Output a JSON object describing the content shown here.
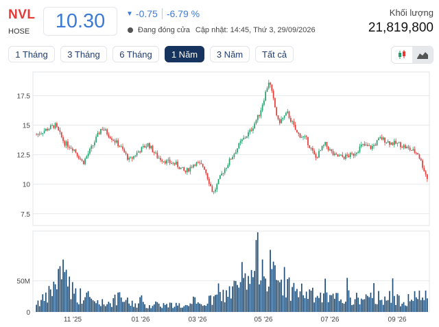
{
  "header": {
    "ticker": "NVL",
    "exchange": "HOSE",
    "price": "10.30",
    "change": "-0.75",
    "change_pct": "-6.79 %",
    "status": "Đang đóng cửa",
    "updated": "Cập nhật: 14:45, Thứ 3, 29/09/2026",
    "volume_label": "Khối lượng",
    "volume_value": "21,819,800"
  },
  "colors": {
    "up": "#22a06b",
    "down": "#e53935",
    "volume": "#1f4e79",
    "accent": "#3b7bd6",
    "active_tab": "#17345e"
  },
  "tabs": [
    {
      "label": "1 Tháng",
      "active": false
    },
    {
      "label": "3 Tháng",
      "active": false
    },
    {
      "label": "6 Tháng",
      "active": false
    },
    {
      "label": "1 Năm",
      "active": true
    },
    {
      "label": "3 Năm",
      "active": false
    },
    {
      "label": "Tất cả",
      "active": false
    }
  ],
  "chart_toggle": {
    "icons": [
      "candlestick-icon",
      "area-chart-icon"
    ],
    "selected": "area-chart-icon"
  },
  "chart_data": {
    "type": "candlestick",
    "price_ticks": [
      "17.5",
      "15",
      "12.5",
      "10",
      "7.5"
    ],
    "volume_ticks": [
      "50M",
      "0"
    ],
    "x_ticks": [
      "11 '25",
      "01 '26",
      "03 '26",
      "05 '26",
      "07 '26",
      "09 '26"
    ],
    "price_range": [
      6.5,
      19.5
    ],
    "volume_range": [
      0,
      130
    ],
    "anchors": [
      [
        14.2,
        14.6,
        15.0,
        13.5,
        13.0,
        11.8,
        13.2,
        14.8,
        14.0,
        13.2,
        12.0,
        12.8,
        13.4,
        12.3,
        11.9,
        11.7,
        11.0,
        11.8,
        11.5,
        9.2,
        11.0,
        12.3,
        13.6,
        14.5,
        16.0,
        18.8,
        15.2,
        16.0,
        14.3,
        13.8,
        12.2,
        13.4,
        12.4,
        12.3,
        12.5,
        13.3,
        13.1,
        13.9,
        13.5,
        13.4,
        13.0,
        12.6,
        10.5
      ]
    ],
    "volume_anchors": [
      16,
      20,
      44,
      70,
      30,
      24,
      18,
      14,
      16,
      22,
      14,
      12,
      10,
      14,
      10,
      12,
      9,
      10,
      14,
      20,
      26,
      34,
      40,
      50,
      95,
      62,
      48,
      40,
      34,
      30,
      24,
      22,
      20,
      26,
      20,
      22,
      20,
      26,
      22,
      20,
      20,
      24,
      22
    ]
  }
}
